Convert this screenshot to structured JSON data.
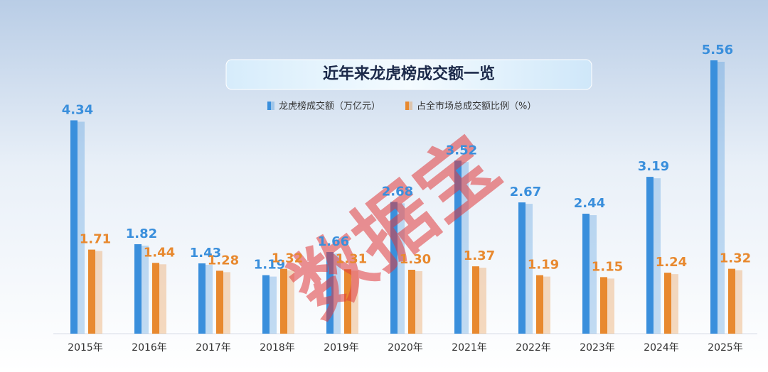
{
  "chart_data": {
    "type": "bar",
    "title": "近年来龙虎榜成交额一览",
    "watermark": "数据宝",
    "categories": [
      "2015年",
      "2016年",
      "2017年",
      "2018年",
      "2019年",
      "2020年",
      "2021年",
      "2022年",
      "2023年",
      "2024年",
      "2025年"
    ],
    "series": [
      {
        "name": "龙虎榜成交额（万亿元）",
        "color": "#3a8fdc",
        "values": [
          4.34,
          1.82,
          1.43,
          1.19,
          1.66,
          2.68,
          3.52,
          2.67,
          2.44,
          3.19,
          5.56
        ],
        "value_labels": [
          "4.34",
          "1.82",
          "1.43",
          "1.19",
          "1.66",
          "2.68",
          "3.52",
          "2.67",
          "2.44",
          "3.19",
          "5.56"
        ]
      },
      {
        "name": "占全市场总成交额比例（%）",
        "color": "#e8892f",
        "values": [
          1.71,
          1.44,
          1.28,
          1.32,
          1.31,
          1.3,
          1.37,
          1.19,
          1.15,
          1.24,
          1.32
        ],
        "value_labels": [
          "1.71",
          "1.44",
          "1.28",
          "1.32",
          "1.31",
          "1.30",
          "1.37",
          "1.19",
          "1.15",
          "1.24",
          "1.32"
        ]
      }
    ]
  }
}
